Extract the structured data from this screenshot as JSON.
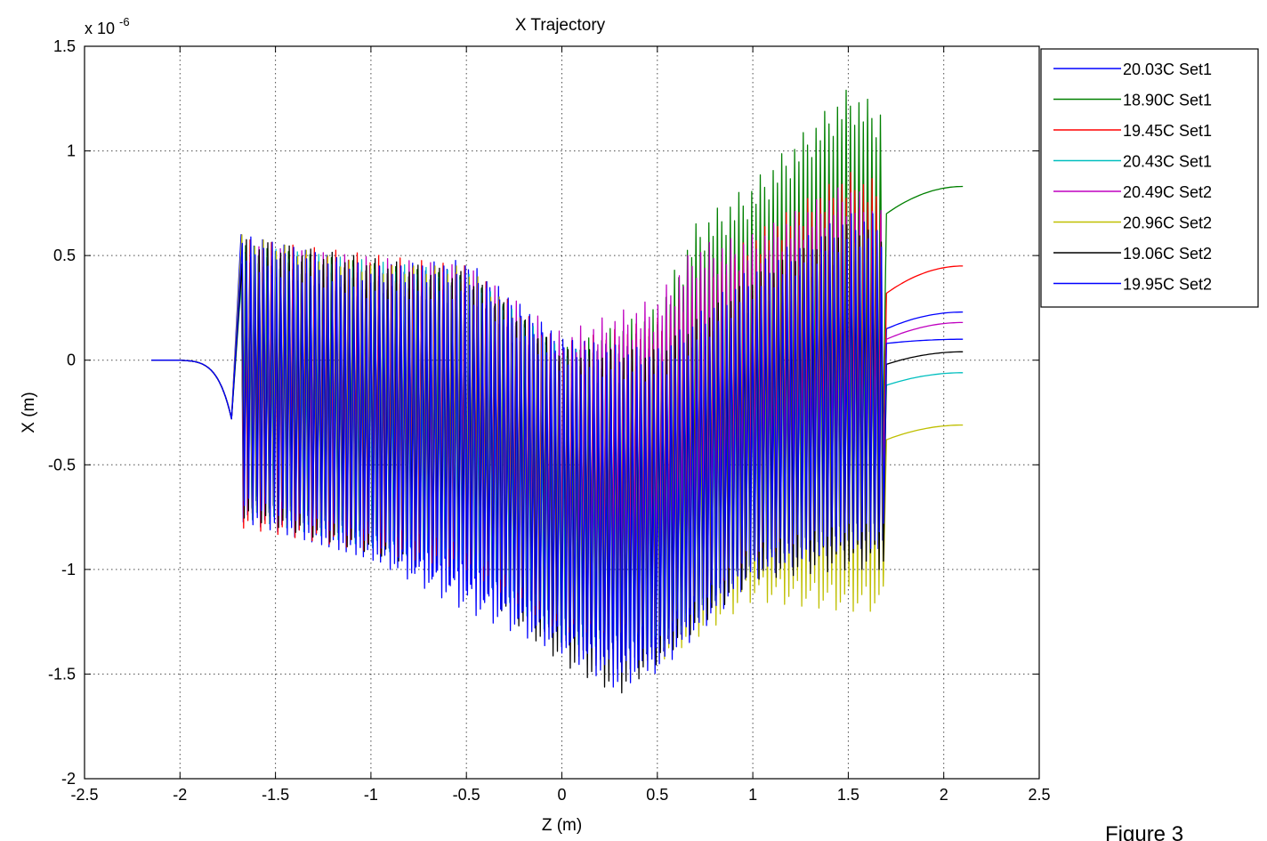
{
  "caption": "Figure 3",
  "chart_data": {
    "type": "line",
    "title": "X Trajectory",
    "xlabel": "Z (m)",
    "ylabel": "X (m)",
    "y_multiplier_label": "x 10",
    "y_multiplier_exponent": "-6",
    "xlim": [
      -2.5,
      2.5
    ],
    "ylim": [
      -2,
      1.5
    ],
    "x_ticks": [
      -2.5,
      -2,
      -1.5,
      -1,
      -0.5,
      0,
      0.5,
      1,
      1.5,
      2,
      2.5
    ],
    "x_tick_labels": [
      "-2.5",
      "-2",
      "-1.5",
      "-1",
      "-0.5",
      "0",
      "0.5",
      "1",
      "1.5",
      "2",
      "2.5"
    ],
    "y_ticks": [
      -2,
      -1.5,
      -1,
      -0.5,
      0,
      0.5,
      1,
      1.5
    ],
    "y_tick_labels": [
      "-2",
      "-1.5",
      "-1",
      "-0.5",
      "0",
      "0.5",
      "1",
      "1.5"
    ],
    "grid": true,
    "legend_position": "top-right, outside",
    "z_start": -2.15,
    "z_undulator_start": -1.68,
    "z_undulator_end": 1.69,
    "z_end": 2.1,
    "series": [
      {
        "name": "20.03C Set1",
        "color": "#0000ff",
        "upper": [
          [
            -1.68,
            0.6
          ],
          [
            -1.0,
            0.45
          ],
          [
            -0.5,
            0.48
          ],
          [
            0.0,
            0.1
          ],
          [
            0.5,
            0.05
          ],
          [
            1.0,
            0.5
          ],
          [
            1.5,
            0.75
          ],
          [
            1.69,
            0.75
          ]
        ],
        "lower": [
          [
            -1.68,
            -0.77
          ],
          [
            -1.0,
            -0.95
          ],
          [
            -0.5,
            -1.1
          ],
          [
            0.0,
            -1.35
          ],
          [
            0.5,
            -1.5
          ],
          [
            1.0,
            -1.05
          ],
          [
            1.5,
            -0.9
          ],
          [
            1.69,
            -0.9
          ]
        ],
        "exit": [
          [
            1.7,
            0.15
          ],
          [
            2.1,
            0.23
          ]
        ]
      },
      {
        "name": "18.90C Set1",
        "color": "#008000",
        "upper": [
          [
            -1.68,
            0.55
          ],
          [
            -0.5,
            0.4
          ],
          [
            0.0,
            0.05
          ],
          [
            0.5,
            0.25
          ],
          [
            0.7,
            0.65
          ],
          [
            1.0,
            0.85
          ],
          [
            1.5,
            1.3
          ],
          [
            1.69,
            1.2
          ]
        ],
        "lower": [
          [
            -1.68,
            -0.7
          ],
          [
            -0.5,
            -0.9
          ],
          [
            0.0,
            -1.2
          ],
          [
            0.5,
            -1.1
          ],
          [
            1.0,
            -0.8
          ],
          [
            1.5,
            -0.6
          ],
          [
            1.69,
            -0.6
          ]
        ],
        "exit": [
          [
            1.7,
            0.7
          ],
          [
            2.1,
            0.83
          ]
        ]
      },
      {
        "name": "19.45C Set1",
        "color": "#ff0000",
        "upper": [
          [
            -1.68,
            0.58
          ],
          [
            -0.5,
            0.45
          ],
          [
            0.0,
            0.08
          ],
          [
            0.5,
            0.2
          ],
          [
            1.0,
            0.6
          ],
          [
            1.5,
            0.9
          ],
          [
            1.69,
            0.85
          ]
        ],
        "lower": [
          [
            -1.68,
            -0.8
          ],
          [
            -0.5,
            -1.0
          ],
          [
            0.0,
            -1.3
          ],
          [
            0.5,
            -1.3
          ],
          [
            1.0,
            -0.95
          ],
          [
            1.5,
            -0.8
          ],
          [
            1.69,
            -0.8
          ]
        ],
        "exit": [
          [
            1.7,
            0.32
          ],
          [
            2.1,
            0.45
          ]
        ]
      },
      {
        "name": "20.43C Set1",
        "color": "#00bfbf",
        "upper": [
          [
            -1.68,
            0.55
          ],
          [
            -0.5,
            0.42
          ],
          [
            0.0,
            0.05
          ],
          [
            0.5,
            0.05
          ],
          [
            1.0,
            0.35
          ],
          [
            1.5,
            0.55
          ],
          [
            1.69,
            0.5
          ]
        ],
        "lower": [
          [
            -1.68,
            -0.75
          ],
          [
            -0.5,
            -1.0
          ],
          [
            0.0,
            -1.35
          ],
          [
            0.5,
            -1.4
          ],
          [
            1.0,
            -1.0
          ],
          [
            1.5,
            -0.9
          ],
          [
            1.69,
            -0.95
          ]
        ],
        "exit": [
          [
            1.7,
            -0.12
          ],
          [
            2.1,
            -0.06
          ]
        ]
      },
      {
        "name": "20.49C Set2",
        "color": "#bf00bf",
        "upper": [
          [
            -1.68,
            0.55
          ],
          [
            -0.5,
            0.45
          ],
          [
            0.0,
            0.13
          ],
          [
            0.5,
            0.3
          ],
          [
            0.7,
            0.55
          ],
          [
            1.0,
            0.6
          ],
          [
            1.5,
            0.85
          ],
          [
            1.69,
            0.7
          ]
        ],
        "lower": [
          [
            -1.68,
            -0.75
          ],
          [
            -0.5,
            -0.9
          ],
          [
            0.0,
            -1.2
          ],
          [
            0.5,
            -1.15
          ],
          [
            1.0,
            -0.85
          ],
          [
            1.5,
            -0.85
          ],
          [
            1.69,
            -0.85
          ]
        ],
        "exit": [
          [
            1.7,
            0.1
          ],
          [
            2.1,
            0.18
          ]
        ]
      },
      {
        "name": "20.96C Set2",
        "color": "#bfbf00",
        "upper": [
          [
            -1.68,
            0.6
          ],
          [
            -1.0,
            0.45
          ],
          [
            -0.5,
            0.45
          ],
          [
            0.0,
            0.02
          ],
          [
            0.3,
            -0.25
          ],
          [
            0.5,
            -0.15
          ],
          [
            1.0,
            0.3
          ],
          [
            1.5,
            0.6
          ],
          [
            1.69,
            0.6
          ]
        ],
        "lower": [
          [
            -1.68,
            -0.75
          ],
          [
            -0.5,
            -0.95
          ],
          [
            0.0,
            -1.3
          ],
          [
            0.5,
            -1.45
          ],
          [
            1.0,
            -1.15
          ],
          [
            1.5,
            -1.2
          ],
          [
            1.69,
            -1.2
          ]
        ],
        "exit": [
          [
            1.7,
            -0.38
          ],
          [
            2.1,
            -0.31
          ]
        ]
      },
      {
        "name": "19.06C Set2",
        "color": "#000000",
        "upper": [
          [
            -1.68,
            0.58
          ],
          [
            -0.5,
            0.42
          ],
          [
            0.0,
            0.05
          ],
          [
            0.5,
            0.05
          ],
          [
            1.0,
            0.4
          ],
          [
            1.5,
            0.65
          ],
          [
            1.69,
            0.6
          ]
        ],
        "lower": [
          [
            -1.68,
            -0.75
          ],
          [
            -0.5,
            -1.05
          ],
          [
            0.0,
            -1.45
          ],
          [
            0.3,
            -1.6
          ],
          [
            0.5,
            -1.45
          ],
          [
            1.0,
            -1.05
          ],
          [
            1.5,
            -1.0
          ],
          [
            1.69,
            -1.0
          ]
        ],
        "exit": [
          [
            1.7,
            -0.02
          ],
          [
            2.1,
            0.04
          ]
        ]
      },
      {
        "name": "19.95C Set2",
        "color": "#0000ff",
        "upper": [
          [
            -1.68,
            0.6
          ],
          [
            -1.0,
            0.45
          ],
          [
            -0.5,
            0.45
          ],
          [
            0.0,
            0.1
          ],
          [
            0.5,
            0.05
          ],
          [
            1.0,
            0.45
          ],
          [
            1.5,
            0.7
          ],
          [
            1.69,
            0.7
          ]
        ],
        "lower": [
          [
            -1.68,
            -0.77
          ],
          [
            -1.0,
            -0.95
          ],
          [
            -0.5,
            -1.2
          ],
          [
            0.0,
            -1.4
          ],
          [
            0.3,
            -1.58
          ],
          [
            0.5,
            -1.45
          ],
          [
            1.0,
            -1.0
          ],
          [
            1.5,
            -0.9
          ],
          [
            1.69,
            -0.9
          ]
        ],
        "exit": [
          [
            1.7,
            0.08
          ],
          [
            2.1,
            0.1
          ]
        ]
      }
    ]
  }
}
